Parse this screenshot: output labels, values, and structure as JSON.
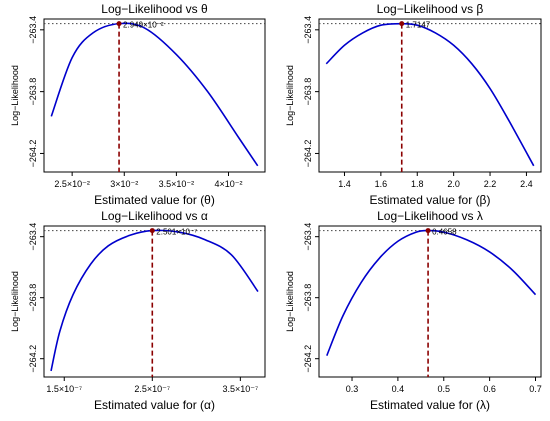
{
  "chart_data": [
    {
      "type": "line",
      "title": "Log−Likelihood vs θ",
      "xlabel": "Estimated value for (θ)",
      "ylabel": "Log−Likelihood",
      "xlim": [
        0.0223,
        0.0435
      ],
      "ylim": [
        -264.32,
        -263.33
      ],
      "xticks": [
        {
          "value": 0.025,
          "label": "2.5×10⁻²"
        },
        {
          "value": 0.03,
          "label": "3×10⁻²"
        },
        {
          "value": 0.035,
          "label": "3.5×10⁻²"
        },
        {
          "value": 0.04,
          "label": "4×10⁻²"
        }
      ],
      "yticks": [
        {
          "value": -263.4,
          "label": "−263.4"
        },
        {
          "value": -263.8,
          "label": "−263.8"
        },
        {
          "value": -264.2,
          "label": "−264.2"
        }
      ],
      "curve": {
        "x": [
          0.023,
          0.025,
          0.027,
          0.0295,
          0.032,
          0.035,
          0.038,
          0.041,
          0.0428
        ],
        "y": [
          -263.96,
          -263.58,
          -263.42,
          -263.36,
          -263.39,
          -263.56,
          -263.8,
          -264.1,
          -264.28
        ]
      },
      "max": {
        "x": 0.0295,
        "y": -263.36,
        "label": "2.949×10⁻²"
      },
      "color": "#0000cc",
      "marker_color": "#8b0000"
    },
    {
      "type": "line",
      "title": "Log−Likelihood vs β",
      "xlabel": "Estimated value for (β)",
      "ylabel": "Log−Likelihood",
      "xlim": [
        1.26,
        2.48
      ],
      "ylim": [
        -264.32,
        -263.33
      ],
      "xticks": [
        {
          "value": 1.4,
          "label": "1.4"
        },
        {
          "value": 1.6,
          "label": "1.6"
        },
        {
          "value": 1.8,
          "label": "1.8"
        },
        {
          "value": 2.0,
          "label": "2.0"
        },
        {
          "value": 2.2,
          "label": "2.2"
        },
        {
          "value": 2.4,
          "label": "2.4"
        }
      ],
      "yticks": [
        {
          "value": -263.4,
          "label": "−263.4"
        },
        {
          "value": -263.8,
          "label": "−263.8"
        },
        {
          "value": -264.2,
          "label": "−264.2"
        }
      ],
      "curve": {
        "x": [
          1.3,
          1.4,
          1.5,
          1.6,
          1.7147,
          1.8,
          1.9,
          2.0,
          2.1,
          2.2,
          2.3,
          2.44
        ],
        "y": [
          -263.62,
          -263.5,
          -263.42,
          -263.37,
          -263.36,
          -263.37,
          -263.42,
          -263.5,
          -263.62,
          -263.78,
          -263.98,
          -264.28
        ]
      },
      "max": {
        "x": 1.7147,
        "y": -263.36,
        "label": "1.7147"
      },
      "color": "#0000cc",
      "marker_color": "#8b0000"
    },
    {
      "type": "line",
      "title": "Log−Likelihood vs α",
      "xlabel": "Estimated value for (α)",
      "ylabel": "Log−Likelihood",
      "xlim": [
        1.27e-07,
        3.78e-07
      ],
      "ylim": [
        -264.32,
        -263.33
      ],
      "xticks": [
        {
          "value": 1.5e-07,
          "label": "1.5×10⁻⁷"
        },
        {
          "value": 2.5e-07,
          "label": "2.5×10⁻⁷"
        },
        {
          "value": 3.5e-07,
          "label": "3.5×10⁻⁷"
        }
      ],
      "yticks": [
        {
          "value": -263.4,
          "label": "−263.4"
        },
        {
          "value": -263.8,
          "label": "−263.8"
        },
        {
          "value": -264.2,
          "label": "−264.2"
        }
      ],
      "curve": {
        "x": [
          1.35e-07,
          1.45e-07,
          1.6e-07,
          1.8e-07,
          2e-07,
          2.25e-07,
          2.5e-07,
          2.8e-07,
          3.1e-07,
          3.4e-07,
          3.7e-07
        ],
        "y": [
          -264.28,
          -264.02,
          -263.78,
          -263.58,
          -263.46,
          -263.39,
          -263.36,
          -263.37,
          -263.42,
          -263.52,
          -263.76
        ]
      },
      "max": {
        "x": 2.5e-07,
        "y": -263.36,
        "label": "2.501×10⁻⁷"
      },
      "color": "#0000cc",
      "marker_color": "#8b0000"
    },
    {
      "type": "line",
      "title": "Log−Likelihood vs λ",
      "xlabel": "Estimated value for (λ)",
      "ylabel": "Log−Likelihood",
      "xlim": [
        0.228,
        0.712
      ],
      "ylim": [
        -264.32,
        -263.33
      ],
      "xticks": [
        {
          "value": 0.3,
          "label": "0.3"
        },
        {
          "value": 0.4,
          "label": "0.4"
        },
        {
          "value": 0.5,
          "label": "0.5"
        },
        {
          "value": 0.6,
          "label": "0.6"
        },
        {
          "value": 0.7,
          "label": "0.7"
        }
      ],
      "yticks": [
        {
          "value": -263.4,
          "label": "−263.4"
        },
        {
          "value": -263.8,
          "label": "−263.8"
        },
        {
          "value": -264.2,
          "label": "−264.2"
        }
      ],
      "curve": {
        "x": [
          0.245,
          0.28,
          0.32,
          0.36,
          0.4,
          0.44,
          0.4658,
          0.5,
          0.55,
          0.6,
          0.65,
          0.7
        ],
        "y": [
          -264.18,
          -263.92,
          -263.7,
          -263.54,
          -263.43,
          -263.37,
          -263.36,
          -263.37,
          -263.42,
          -263.5,
          -263.62,
          -263.78
        ]
      },
      "max": {
        "x": 0.4658,
        "y": -263.36,
        "label": "0.4658"
      },
      "color": "#0000cc",
      "marker_color": "#8b0000"
    }
  ]
}
